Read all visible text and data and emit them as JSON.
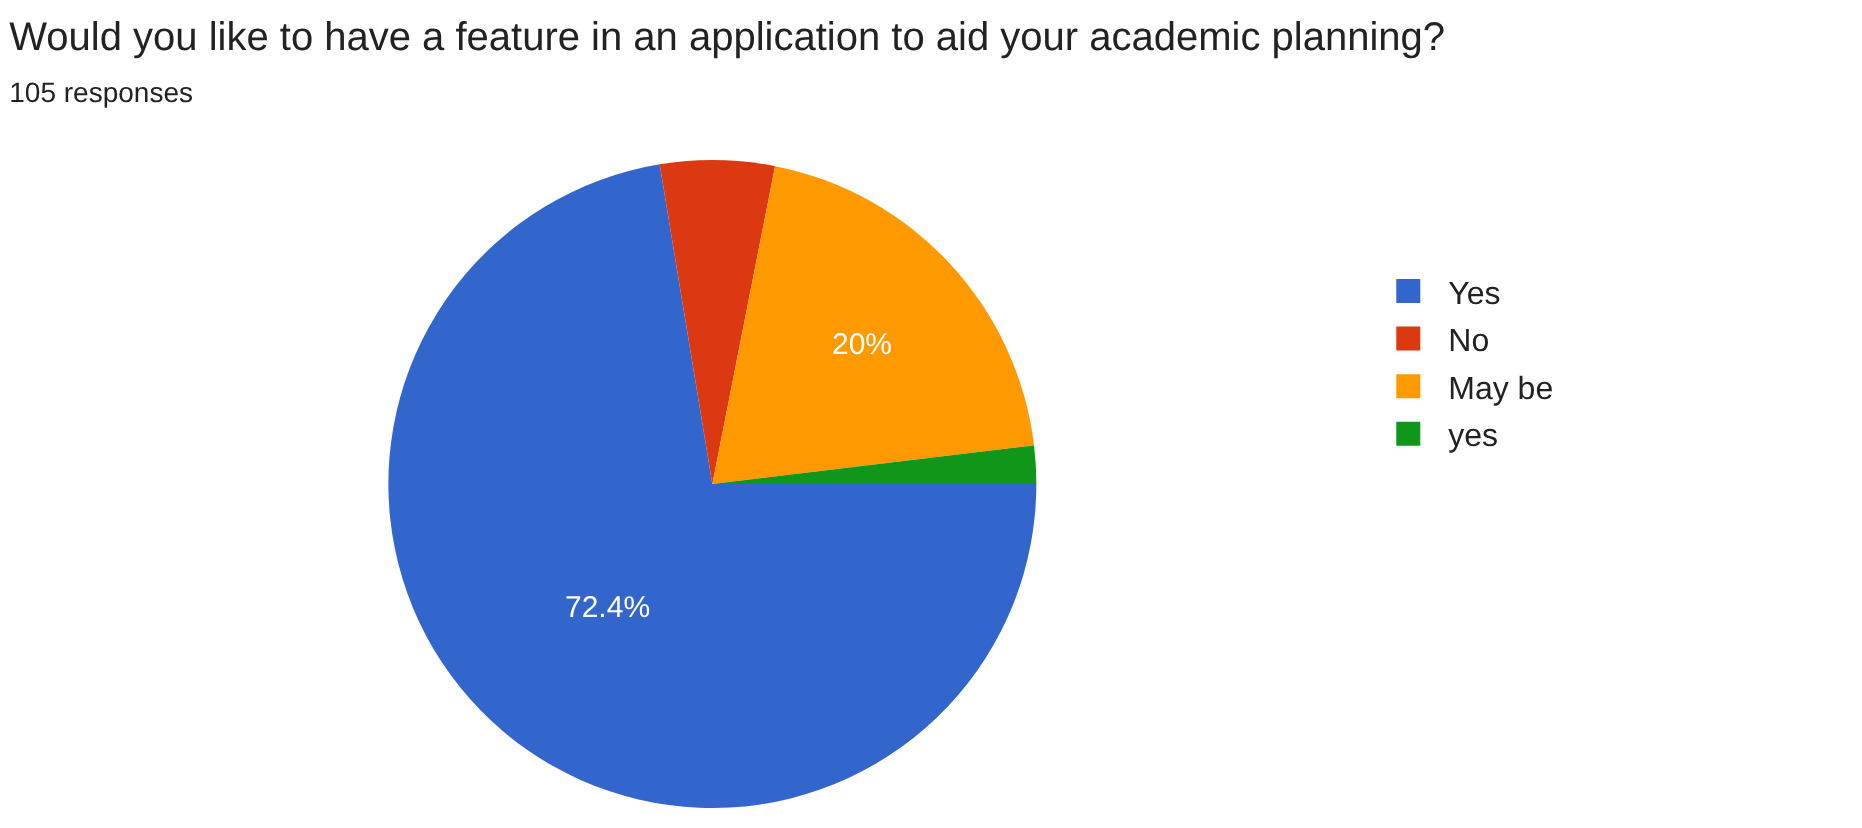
{
  "chart_data": {
    "type": "pie",
    "title": "Would you like to have a feature in an application to aid your academic planning?",
    "subtitle": "105 responses",
    "categories": [
      "Yes",
      "No",
      "May be",
      "yes"
    ],
    "values": [
      72.4,
      5.7,
      20,
      1.9
    ],
    "colors": [
      "#3366cc",
      "#dc3912",
      "#ff9900",
      "#109618"
    ],
    "value_labels": [
      "72.4%",
      null,
      "20%",
      null
    ],
    "legend": "right"
  }
}
